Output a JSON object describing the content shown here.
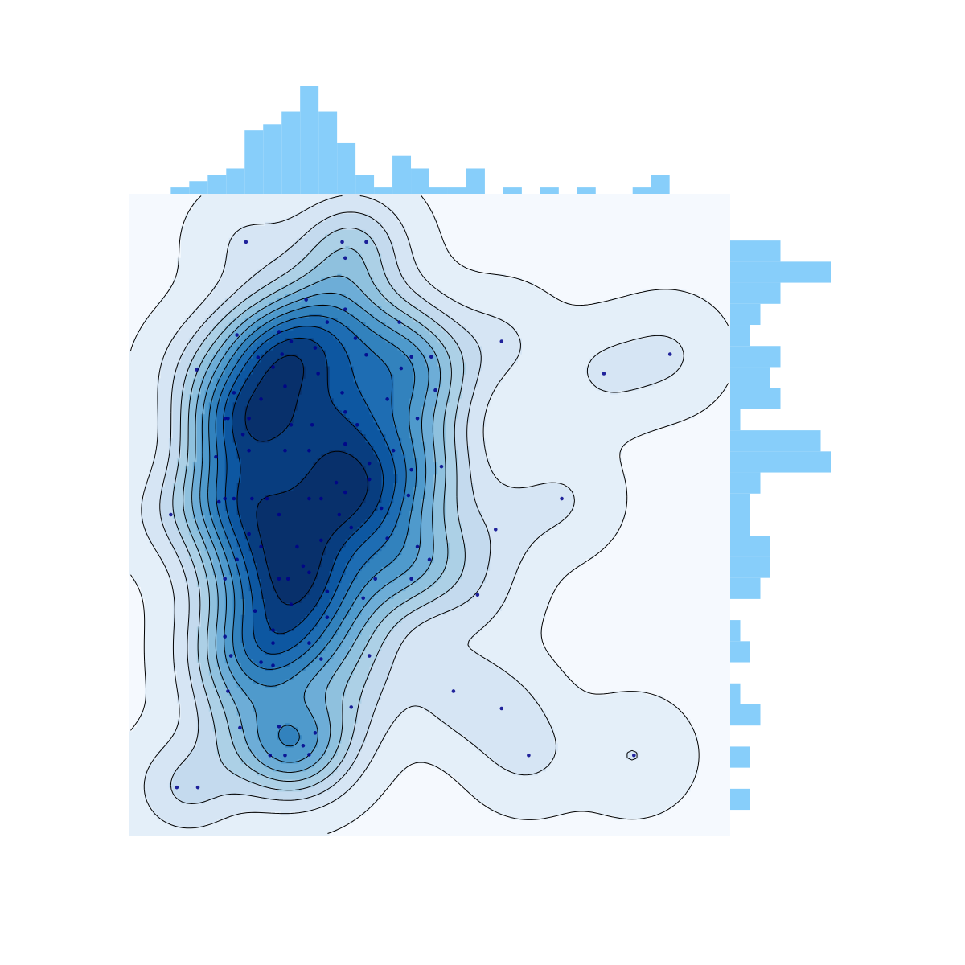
{
  "chart_data": {
    "type": "scatter",
    "kind": "joint-kde-with-marginal-histograms",
    "title": "",
    "xlabel": "",
    "ylabel": "",
    "xlim": [
      0,
      1
    ],
    "ylim": [
      0,
      1
    ],
    "grid": false,
    "legend": "none",
    "colors": {
      "panel_background": "#f5f9fe",
      "kde_levels": [
        "#f5f9fe",
        "#e4eff9",
        "#d6e5f4",
        "#c4daee",
        "#acd0e6",
        "#8fc1de",
        "#6dadd7",
        "#4f9acc",
        "#3282bd",
        "#1e6db3",
        "#0d57a1",
        "#083d7f",
        "#08306b"
      ],
      "contour_line": "#000000",
      "points": "#00008b",
      "marginal_bars": "#87cefa"
    },
    "kde_peaks": [
      {
        "x": 0.31,
        "y": 0.52,
        "level": 12
      },
      {
        "x": 0.24,
        "y": 0.13,
        "level": 7
      },
      {
        "x": 0.62,
        "y": 0.49,
        "level": 3
      },
      {
        "x": 0.62,
        "y": 0.27,
        "level": 3
      },
      {
        "x": 0.92,
        "y": 0.63,
        "level": 3
      }
    ],
    "points": [
      {
        "x": 0.195,
        "y": 0.925
      },
      {
        "x": 0.355,
        "y": 0.925
      },
      {
        "x": 0.395,
        "y": 0.925
      },
      {
        "x": 0.36,
        "y": 0.9
      },
      {
        "x": 0.295,
        "y": 0.835
      },
      {
        "x": 0.33,
        "y": 0.8
      },
      {
        "x": 0.36,
        "y": 0.82
      },
      {
        "x": 0.45,
        "y": 0.8
      },
      {
        "x": 0.18,
        "y": 0.78
      },
      {
        "x": 0.25,
        "y": 0.785
      },
      {
        "x": 0.24,
        "y": 0.73
      },
      {
        "x": 0.255,
        "y": 0.75
      },
      {
        "x": 0.215,
        "y": 0.745
      },
      {
        "x": 0.27,
        "y": 0.77
      },
      {
        "x": 0.31,
        "y": 0.76
      },
      {
        "x": 0.315,
        "y": 0.72
      },
      {
        "x": 0.395,
        "y": 0.749
      },
      {
        "x": 0.377,
        "y": 0.775
      },
      {
        "x": 0.47,
        "y": 0.746
      },
      {
        "x": 0.503,
        "y": 0.746
      },
      {
        "x": 0.453,
        "y": 0.728
      },
      {
        "x": 0.51,
        "y": 0.694
      },
      {
        "x": 0.113,
        "y": 0.726
      },
      {
        "x": 0.62,
        "y": 0.77
      },
      {
        "x": 0.79,
        "y": 0.72
      },
      {
        "x": 0.9,
        "y": 0.75
      },
      {
        "x": 0.22,
        "y": 0.68
      },
      {
        "x": 0.175,
        "y": 0.69
      },
      {
        "x": 0.2,
        "y": 0.65
      },
      {
        "x": 0.26,
        "y": 0.7
      },
      {
        "x": 0.305,
        "y": 0.64
      },
      {
        "x": 0.36,
        "y": 0.66
      },
      {
        "x": 0.355,
        "y": 0.69
      },
      {
        "x": 0.38,
        "y": 0.64
      },
      {
        "x": 0.16,
        "y": 0.65
      },
      {
        "x": 0.19,
        "y": 0.625
      },
      {
        "x": 0.27,
        "y": 0.64
      },
      {
        "x": 0.2,
        "y": 0.6
      },
      {
        "x": 0.26,
        "y": 0.6
      },
      {
        "x": 0.3,
        "y": 0.6
      },
      {
        "x": 0.36,
        "y": 0.61
      },
      {
        "x": 0.4,
        "y": 0.58
      },
      {
        "x": 0.48,
        "y": 0.65
      },
      {
        "x": 0.47,
        "y": 0.57
      },
      {
        "x": 0.465,
        "y": 0.53
      },
      {
        "x": 0.52,
        "y": 0.575
      },
      {
        "x": 0.15,
        "y": 0.52
      },
      {
        "x": 0.16,
        "y": 0.525
      },
      {
        "x": 0.175,
        "y": 0.525
      },
      {
        "x": 0.205,
        "y": 0.525
      },
      {
        "x": 0.23,
        "y": 0.525
      },
      {
        "x": 0.3,
        "y": 0.525
      },
      {
        "x": 0.32,
        "y": 0.525
      },
      {
        "x": 0.36,
        "y": 0.535
      },
      {
        "x": 0.4,
        "y": 0.555
      },
      {
        "x": 0.145,
        "y": 0.59
      },
      {
        "x": 0.25,
        "y": 0.5
      },
      {
        "x": 0.35,
        "y": 0.5
      },
      {
        "x": 0.07,
        "y": 0.5
      },
      {
        "x": 0.72,
        "y": 0.525
      },
      {
        "x": 0.2,
        "y": 0.47
      },
      {
        "x": 0.22,
        "y": 0.45
      },
      {
        "x": 0.32,
        "y": 0.46
      },
      {
        "x": 0.43,
        "y": 0.463
      },
      {
        "x": 0.61,
        "y": 0.477
      },
      {
        "x": 0.5,
        "y": 0.43
      },
      {
        "x": 0.48,
        "y": 0.45
      },
      {
        "x": 0.18,
        "y": 0.43
      },
      {
        "x": 0.25,
        "y": 0.4
      },
      {
        "x": 0.29,
        "y": 0.42
      },
      {
        "x": 0.3,
        "y": 0.41
      },
      {
        "x": 0.41,
        "y": 0.4
      },
      {
        "x": 0.47,
        "y": 0.4
      },
      {
        "x": 0.39,
        "y": 0.37
      },
      {
        "x": 0.21,
        "y": 0.35
      },
      {
        "x": 0.27,
        "y": 0.36
      },
      {
        "x": 0.33,
        "y": 0.34
      },
      {
        "x": 0.58,
        "y": 0.375
      },
      {
        "x": 0.16,
        "y": 0.4
      },
      {
        "x": 0.24,
        "y": 0.32
      },
      {
        "x": 0.3,
        "y": 0.3
      },
      {
        "x": 0.4,
        "y": 0.28
      },
      {
        "x": 0.17,
        "y": 0.28
      },
      {
        "x": 0.16,
        "y": 0.31
      },
      {
        "x": 0.22,
        "y": 0.27
      },
      {
        "x": 0.24,
        "y": 0.265
      },
      {
        "x": 0.32,
        "y": 0.275
      },
      {
        "x": 0.165,
        "y": 0.225
      },
      {
        "x": 0.54,
        "y": 0.225
      },
      {
        "x": 0.62,
        "y": 0.198
      },
      {
        "x": 0.37,
        "y": 0.2
      },
      {
        "x": 0.185,
        "y": 0.168
      },
      {
        "x": 0.25,
        "y": 0.17
      },
      {
        "x": 0.31,
        "y": 0.16
      },
      {
        "x": 0.235,
        "y": 0.125
      },
      {
        "x": 0.26,
        "y": 0.125
      },
      {
        "x": 0.3,
        "y": 0.126
      },
      {
        "x": 0.29,
        "y": 0.14
      },
      {
        "x": 0.08,
        "y": 0.075
      },
      {
        "x": 0.115,
        "y": 0.075
      },
      {
        "x": 0.665,
        "y": 0.125
      },
      {
        "x": 0.84,
        "y": 0.125
      },
      {
        "x": 0.165,
        "y": 0.65
      },
      {
        "x": 0.24,
        "y": 0.3
      },
      {
        "x": 0.265,
        "y": 0.4
      },
      {
        "x": 0.28,
        "y": 0.45
      },
      {
        "x": 0.33,
        "y": 0.38
      },
      {
        "x": 0.345,
        "y": 0.55
      },
      {
        "x": 0.37,
        "y": 0.48
      },
      {
        "x": 0.42,
        "y": 0.51
      },
      {
        "x": 0.44,
        "y": 0.6
      },
      {
        "x": 0.43,
        "y": 0.68
      }
    ],
    "marginal_x": {
      "bin_count": 28,
      "bin_range": [
        0.07,
        0.93
      ],
      "counts": [
        1,
        2,
        3,
        4,
        10,
        11,
        13,
        17,
        13,
        8,
        3,
        1,
        6,
        4,
        1,
        1,
        4,
        0,
        1,
        0,
        1,
        0,
        1,
        0,
        0,
        1,
        3,
        0
      ]
    },
    "marginal_y": {
      "bin_count": 28,
      "bin_range": [
        0.04,
        0.96
      ],
      "counts": [
        2,
        0,
        2,
        0,
        3,
        1,
        0,
        2,
        1,
        0,
        3,
        4,
        4,
        2,
        2,
        3,
        10,
        9,
        1,
        5,
        4,
        5,
        2,
        3,
        5,
        10,
        5,
        0
      ]
    }
  }
}
